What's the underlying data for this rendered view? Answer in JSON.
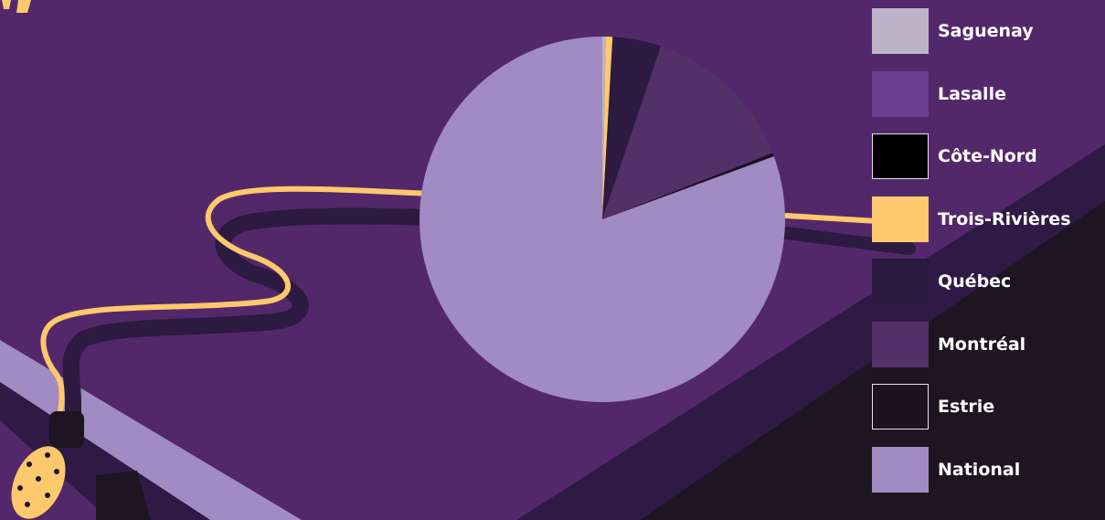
{
  "chart_data": {
    "type": "pie",
    "title": "",
    "series": [
      {
        "name": "Saguenay",
        "value": 0.3,
        "color": "#bcb3c8"
      },
      {
        "name": "Lasalle",
        "value": 0.0,
        "color": "#6c3f93"
      },
      {
        "name": "Côte-Nord",
        "value": 0.0,
        "color": "#000000"
      },
      {
        "name": "Trois-Rivières",
        "value": 0.6,
        "color": "#fdc96c"
      },
      {
        "name": "Québec",
        "value": 4.3,
        "color": "#2c1a40"
      },
      {
        "name": "Montréal",
        "value": 13.9,
        "color": "#543069"
      },
      {
        "name": "Estrie",
        "value": 0.3,
        "color": "#1c1220"
      },
      {
        "name": "National",
        "value": 80.6,
        "color": "#a18bc3"
      }
    ],
    "legend_position": "right"
  },
  "background": {
    "base": "#53286a",
    "light_stripe": "#a18bc3",
    "dark_stripe": "#2f1a45",
    "darkest": "#1d1521",
    "cord": "#fdc96c",
    "cord_shadow": "#2c1a40"
  }
}
